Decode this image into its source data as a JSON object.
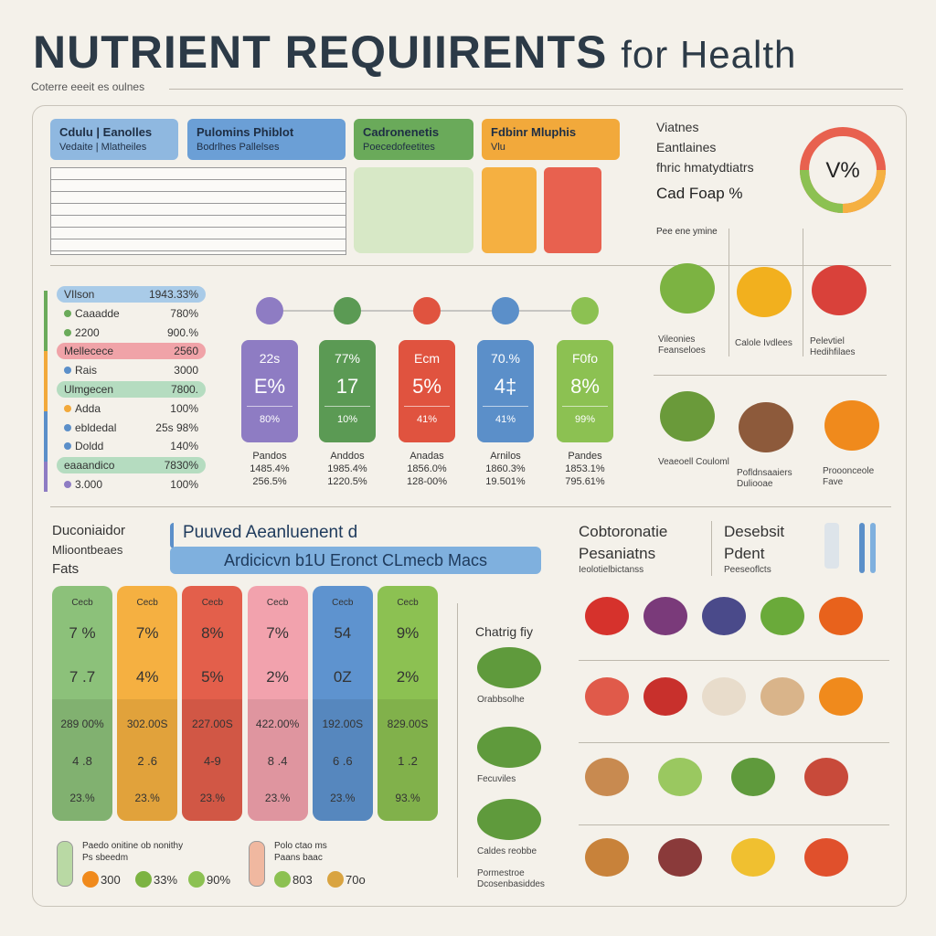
{
  "header": {
    "title": "NUTRIENT REQUIIRENTS",
    "title_suffix": "for Health",
    "subtitle": "Coterre eeeit es oulnes"
  },
  "tabs": [
    {
      "line1": "Cdulu | Eanolles",
      "line2": "Vedaite | Mlatheiles",
      "color": "#8fb8e0"
    },
    {
      "line1": "Pulomins   Phiblot",
      "line2": "Bodrlhes   Pallelses",
      "color": "#6b9fd6"
    },
    {
      "line1": "Cadronenetis",
      "line2": "Poecedofeetites",
      "color": "#6aaa5a"
    },
    {
      "line1": "Fdbinr    Mluphis",
      "line2": "Vlu",
      "color": "#f2a93b"
    }
  ],
  "vitamin_panel": {
    "lines": [
      "Viatnes",
      "Eantlaines",
      "fhric hmatydtiatrs"
    ],
    "highlight": "Cad Foap %",
    "gauge_label": "V%"
  },
  "nutrient_list": [
    {
      "label": "VIlson",
      "value": "1943.33%",
      "color": "#a9cbe8"
    },
    {
      "label": "Caaadde",
      "value": "780%",
      "color": "#6aaa5a"
    },
    {
      "label": "2200",
      "value": "900.%",
      "color": "#6aaa5a"
    },
    {
      "label": "Mellecece",
      "value": "2560",
      "color": "#f0a3a8"
    },
    {
      "label": "Rais",
      "value": "3000",
      "color": "#5b8fc9"
    },
    {
      "label": "Ulmgecen",
      "value": "7800.",
      "color": "#b5dcc0"
    },
    {
      "label": "Adda",
      "value": "100%",
      "color": "#f2a93b"
    },
    {
      "label": "ebldedal",
      "value": "25s 98%",
      "color": "#5b8fc9"
    },
    {
      "label": "Doldd",
      "value": "140%",
      "color": "#5b8fc9"
    },
    {
      "label": "eaaandico",
      "value": "7830%",
      "color": "#b5dcc0"
    },
    {
      "label": "3.000",
      "value": "100%",
      "color": "#8e7cc3"
    }
  ],
  "cards": [
    {
      "top": "22s",
      "main": "E%",
      "bottom": "80%",
      "caption": [
        "Pandos",
        "1485.4%",
        "256.5%"
      ],
      "color": "#8e7cc3"
    },
    {
      "top": "77%",
      "main": "17",
      "bottom": "10%",
      "caption": [
        "Anddos",
        "1985.4%",
        "1220.5%"
      ],
      "color": "#5b9a54"
    },
    {
      "top": "Ecm",
      "main": "5%",
      "bottom": "41%",
      "caption": [
        "Anadas",
        "1856.0%",
        "128-00%"
      ],
      "color": "#e0533f"
    },
    {
      "top": "70.%",
      "main": "4‡",
      "bottom": "41%",
      "caption": [
        "Arnilos",
        "1860.3%",
        "19.501%"
      ],
      "color": "#5b8fc9"
    },
    {
      "top": "F0fo",
      "main": "8%",
      "bottom": "99%",
      "caption": [
        "Pandes",
        "1853.1%",
        "795.61%"
      ],
      "color": "#8cc152"
    }
  ],
  "foods_top": {
    "heading": "Pee ene ymine",
    "labels": [
      "Vileonies Feanseloes",
      "Calole Ivdlees",
      "Pelevtiel Hedihfilaes",
      "Veaeoell Couloml",
      "Pofldnsaaiers Duliooae",
      "Prooonceole Fave"
    ]
  },
  "macros": {
    "heading": [
      "Duconiaidor",
      "Mlioontbeaes",
      "Fats"
    ],
    "banner_title": "Puuved Aeanluenent d",
    "banner": "Ardicicvn b1U Eronct CLmecb Macs",
    "columns": [
      {
        "label": "Cecb",
        "v1": "7 %",
        "v2": "7 .7",
        "v3": "289 00%",
        "v4": "4 .8",
        "v5": "23.%",
        "color": "#8cc17a"
      },
      {
        "label": "Cecb",
        "v1": "7%",
        "v2": "4%",
        "v3": "302.00S",
        "v4": "2 .6",
        "v5": "23.%",
        "color": "#f5b041"
      },
      {
        "label": "Cecb",
        "v1": "8%",
        "v2": "5%",
        "v3": "227.00S",
        "v4": "4-9",
        "v5": "23.%",
        "color": "#e35f4b"
      },
      {
        "label": "Cecb",
        "v1": "7%",
        "v2": "2%",
        "v3": "422.00%",
        "v4": "8 .4",
        "v5": "23.%",
        "color": "#f2a2ad"
      },
      {
        "label": "Cecb",
        "v1": "54",
        "v2": "0Z",
        "v3": "192.00S",
        "v4": "6 .6",
        "v5": "23.%",
        "color": "#5e93cf"
      },
      {
        "label": "Cecb",
        "v1": "9%",
        "v2": "2%",
        "v3": "829.00S",
        "v4": "1 .2",
        "v5": "93.%",
        "color": "#8cc152"
      }
    ]
  },
  "veg": {
    "heading": "Chatrig fiy",
    "labels": [
      "Orabbsolhe",
      "Fecuviles",
      "Caldes reobbe",
      "Pormestroe Dcosenbasiddes"
    ]
  },
  "footer_items": [
    {
      "line1": "Paedo onitine ob nonithy",
      "line2": "Ps sbeedm",
      "values": [
        "300",
        "33%",
        "90%"
      ]
    },
    {
      "line1": "Polo ctao ms",
      "line2": "Paans baac",
      "values": [
        "803",
        "70o"
      ]
    }
  ],
  "right_bottom": {
    "left_title": "Cobtoronatie Pesaniatns",
    "left_sub": "Ieolotielbictanss",
    "right_title": "Desebsit Pdent",
    "right_sub": "Peeseoflcts"
  }
}
